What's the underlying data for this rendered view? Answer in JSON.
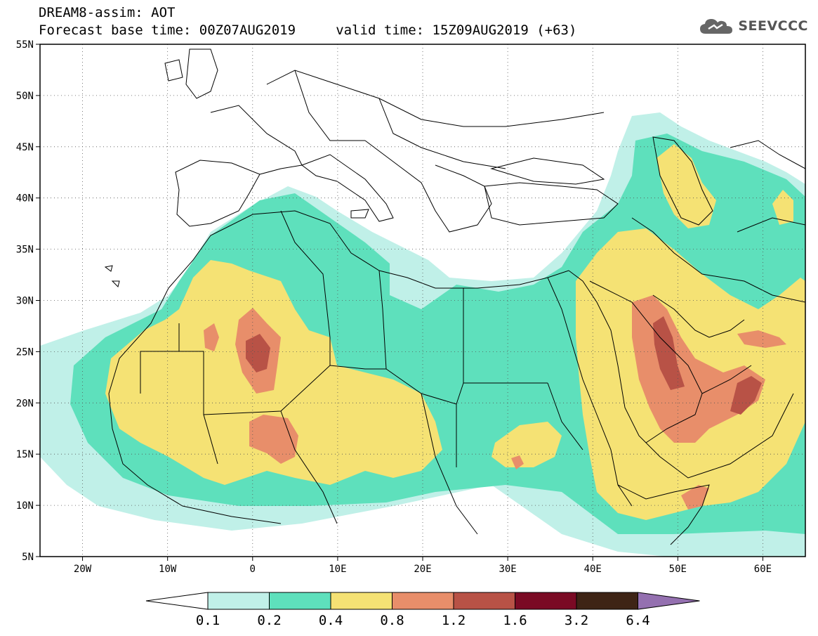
{
  "header": {
    "title_line1": "DREAM8-assim: AOT",
    "title_line2": "Forecast base time: 00Z07AUG2019     valid time: 15Z09AUG2019 (+63)",
    "logo_text": "SEEVCCC"
  },
  "map": {
    "lon_range": [
      -25,
      65
    ],
    "lat_range": [
      5,
      55
    ],
    "lat_labels": [
      "55N",
      "50N",
      "45N",
      "40N",
      "35N",
      "30N",
      "25N",
      "20N",
      "15N",
      "10N",
      "5N"
    ],
    "lon_labels": [
      "20W",
      "10W",
      "0",
      "10E",
      "20E",
      "30E",
      "40E",
      "50E",
      "60E"
    ],
    "grid": "dotted",
    "shading_colors": [
      "#c0f0e8",
      "#5ee0bc",
      "#f5e274",
      "#e88e6a",
      "#b85246",
      "#7a0a24",
      "#3e2415",
      "#9470b0"
    ]
  },
  "colorbar": {
    "labels": [
      "0.1",
      "0.2",
      "0.4",
      "0.8",
      "1.2",
      "1.6",
      "3.2",
      "6.4"
    ],
    "colors": [
      "#c0f0e8",
      "#5ee0bc",
      "#f5e274",
      "#e88e6a",
      "#b85246",
      "#7a0a24",
      "#3e2415"
    ],
    "low_extend_color": "#ffffff",
    "high_extend_color": "#9470b0"
  }
}
